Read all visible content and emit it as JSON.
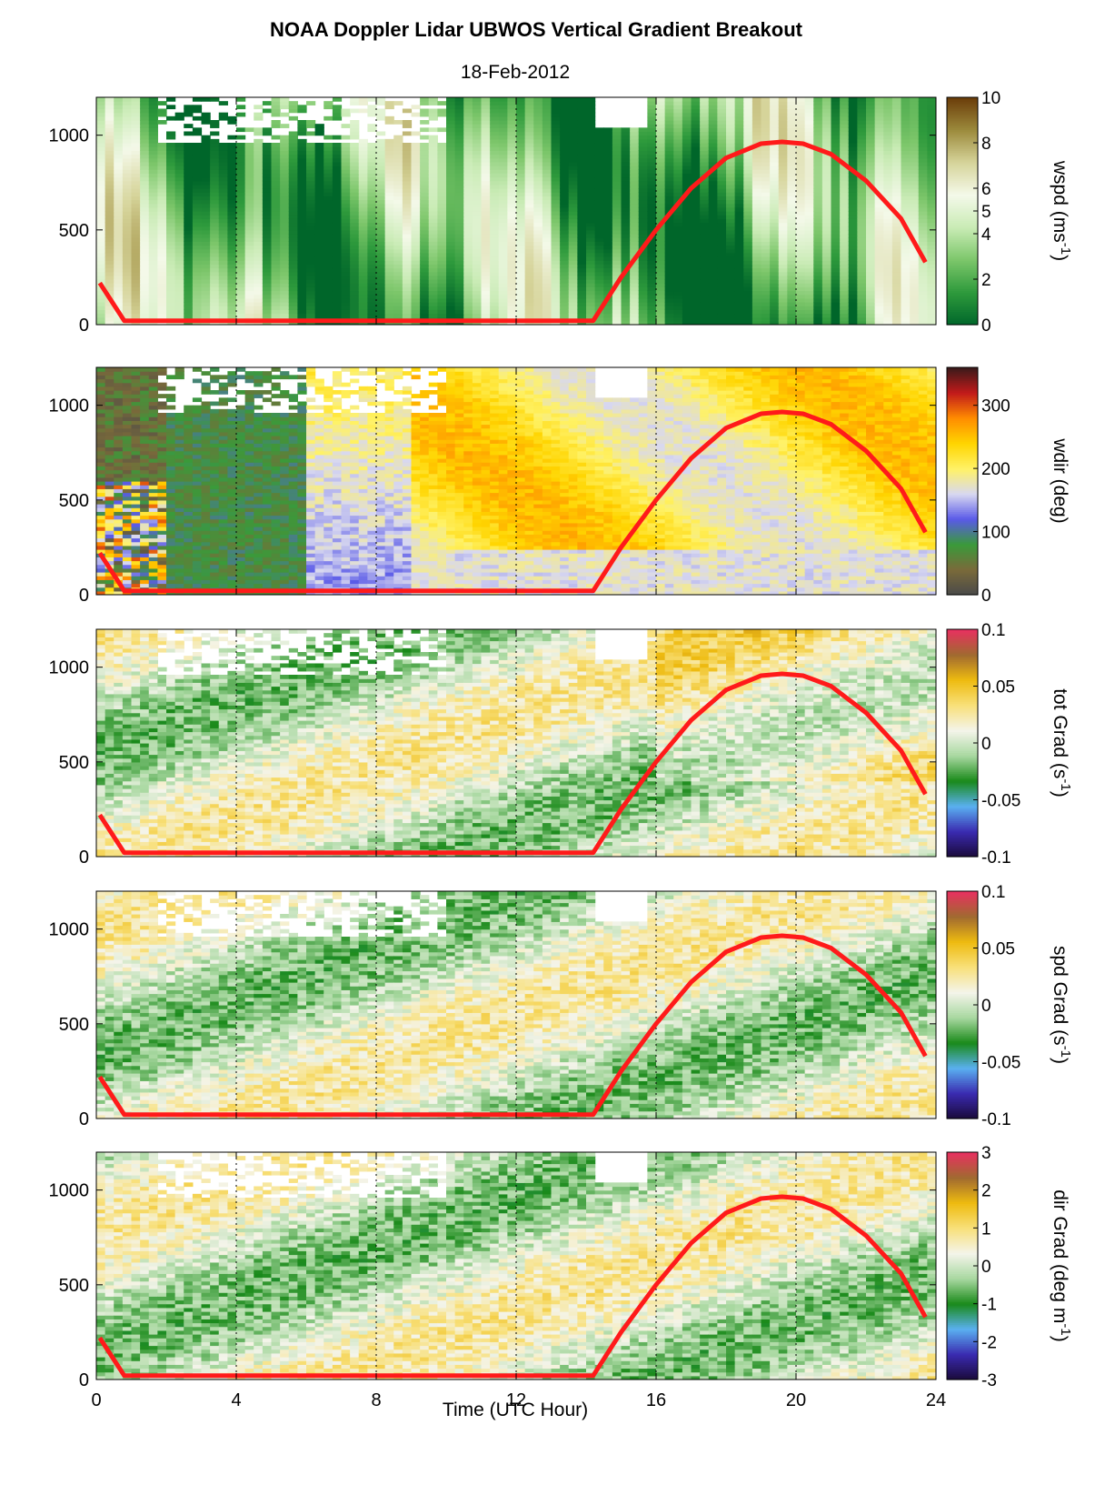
{
  "title": "NOAA Doppler Lidar  UBWOS  Vertical Gradient Breakout",
  "subtitle": "18-Feb-2012",
  "chart_data": {
    "type": "heatmap",
    "xlabel": "Time (UTC Hour)",
    "xlim": [
      0,
      24
    ],
    "xticks": [
      "0",
      "4",
      "8",
      "12",
      "16",
      "20",
      "24"
    ],
    "ylim": [
      0,
      1200
    ],
    "yticks": [
      "0",
      "500",
      "1000"
    ],
    "dotted_vlines_hours": [
      4,
      8,
      12,
      16,
      20
    ],
    "overlay_line": {
      "color": "#ff1a1a",
      "points": [
        [
          0.1,
          220
        ],
        [
          0.8,
          20
        ],
        [
          2,
          20
        ],
        [
          14.2,
          20
        ],
        [
          15,
          250
        ],
        [
          16,
          500
        ],
        [
          17,
          720
        ],
        [
          18,
          880
        ],
        [
          19,
          955
        ],
        [
          19.6,
          965
        ],
        [
          20.2,
          955
        ],
        [
          21,
          900
        ],
        [
          22,
          760
        ],
        [
          23,
          560
        ],
        [
          23.7,
          330
        ]
      ]
    },
    "panels": [
      {
        "name": "wspd",
        "colorbar_label": "wspd (ms",
        "colorbar_label_sup": "-1",
        "colorbar_label_end": ")",
        "clim": [
          0,
          10
        ],
        "colorbar_ticks": [
          "10",
          "8",
          "6",
          "5",
          "4",
          "2",
          "0"
        ],
        "colorbar_tick_values": [
          10,
          8,
          6,
          5,
          4,
          2,
          0
        ],
        "colors": [
          "#00662a",
          "#2e9a3c",
          "#7cc66a",
          "#c9ebb5",
          "#f4f9e9",
          "#d6d49a",
          "#9c8a3c",
          "#6b3d0a"
        ]
      },
      {
        "name": "wdir",
        "colorbar_label": "wdir (deg)",
        "colorbar_label_sup": "",
        "colorbar_label_end": "",
        "clim": [
          0,
          360
        ],
        "colorbar_ticks": [
          "300",
          "200",
          "100",
          "0"
        ],
        "colorbar_tick_values": [
          300,
          200,
          100,
          0
        ],
        "colors": [
          "#4a4a4a",
          "#7a6a3a",
          "#3a9a3a",
          "#5a5ae8",
          "#d8d8f0",
          "#fff266",
          "#ffd500",
          "#ff8c00",
          "#c21a1a",
          "#3a1a1a"
        ]
      },
      {
        "name": "totgrad",
        "colorbar_label": "tot Grad (s",
        "colorbar_label_sup": "-1",
        "colorbar_label_end": ")",
        "clim": [
          -0.1,
          0.1
        ],
        "colorbar_ticks": [
          "0.1",
          "0.05",
          "0",
          "-0.05",
          "-0.1"
        ],
        "colorbar_tick_values": [
          0.1,
          0.05,
          0,
          -0.05,
          -0.1
        ],
        "colors": [
          "#1a0a3a",
          "#3a2ab0",
          "#5ab0f0",
          "#1a8a1a",
          "#a8d8a0",
          "#f4f4ea",
          "#f8e07a",
          "#eebb10",
          "#a06a30",
          "#e83060"
        ]
      },
      {
        "name": "spdgrad",
        "colorbar_label": "spd Grad (s",
        "colorbar_label_sup": "-1",
        "colorbar_label_end": ")",
        "clim": [
          -0.1,
          0.1
        ],
        "colorbar_ticks": [
          "0.1",
          "0.05",
          "0",
          "-0.05",
          "-0.1"
        ],
        "colorbar_tick_values": [
          0.1,
          0.05,
          0,
          -0.05,
          -0.1
        ],
        "colors": [
          "#1a0a3a",
          "#3a2ab0",
          "#5ab0f0",
          "#1a8a1a",
          "#a8d8a0",
          "#f4f4ea",
          "#f8e07a",
          "#eebb10",
          "#a06a30",
          "#e83060"
        ]
      },
      {
        "name": "dirgrad",
        "colorbar_label": "dir Grad (deg m",
        "colorbar_label_sup": "-1",
        "colorbar_label_end": ")",
        "clim": [
          -3,
          3
        ],
        "colorbar_ticks": [
          "3",
          "2",
          "1",
          "0",
          "-1",
          "-2",
          "-3"
        ],
        "colorbar_tick_values": [
          3,
          2,
          1,
          0,
          -1,
          -2,
          -3
        ],
        "colors": [
          "#1a0a3a",
          "#3a2ab0",
          "#5ab0f0",
          "#1a8a1a",
          "#a8d8a0",
          "#f4f4ea",
          "#f8e07a",
          "#eebb10",
          "#a06a30",
          "#e83060"
        ]
      }
    ]
  }
}
